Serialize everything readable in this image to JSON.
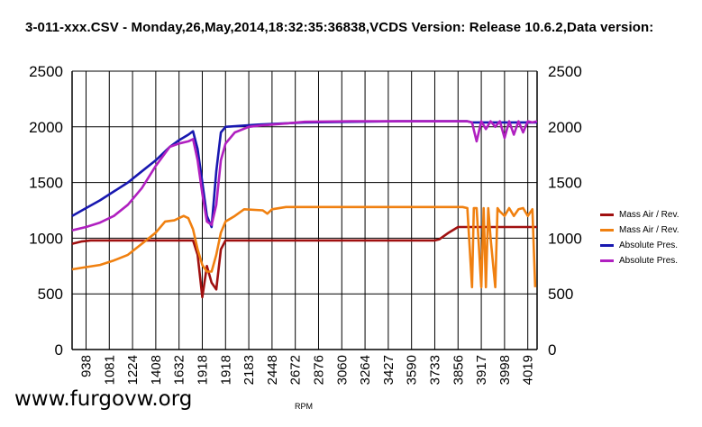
{
  "chart_data": {
    "type": "line",
    "title": "3-011-xxx.CSV - Monday,26,May,2014,18:32:35:36838,VCDS Version: Release 10.6.2,Data version:",
    "xlabel": "RPM",
    "ylabel": "",
    "ylim": [
      0,
      2500
    ],
    "y_ticks": [
      "0",
      "500",
      "1000",
      "1500",
      "2000",
      "2500"
    ],
    "x_tick_labels": [
      "938",
      "1081",
      "1224",
      "1408",
      "1632",
      "1918",
      "1918",
      "2183",
      "2448",
      "2672",
      "2876",
      "3060",
      "3264",
      "3427",
      "3590",
      "3733",
      "3856",
      "3917",
      "3998",
      "4019"
    ],
    "grid": true,
    "legend_position": "right",
    "x_index_max": 100,
    "series": [
      {
        "name": "Mass Air / Rev.",
        "color": "#a01010",
        "points": [
          [
            0,
            950
          ],
          [
            2,
            970
          ],
          [
            4,
            980
          ],
          [
            10,
            980
          ],
          [
            20,
            980
          ],
          [
            26,
            980
          ],
          [
            27,
            850
          ],
          [
            28,
            470
          ],
          [
            29,
            750
          ],
          [
            30,
            600
          ],
          [
            31,
            540
          ],
          [
            32,
            900
          ],
          [
            33,
            980
          ],
          [
            40,
            980
          ],
          [
            60,
            980
          ],
          [
            78,
            980
          ],
          [
            79,
            990
          ],
          [
            81,
            1050
          ],
          [
            83,
            1100
          ],
          [
            100,
            1100
          ]
        ]
      },
      {
        "name": "Mass Air / Rev.",
        "color": "#f08010",
        "points": [
          [
            0,
            720
          ],
          [
            3,
            740
          ],
          [
            6,
            760
          ],
          [
            9,
            800
          ],
          [
            12,
            850
          ],
          [
            15,
            950
          ],
          [
            18,
            1050
          ],
          [
            20,
            1150
          ],
          [
            22,
            1160
          ],
          [
            24,
            1200
          ],
          [
            25,
            1180
          ],
          [
            26,
            1080
          ],
          [
            27,
            900
          ],
          [
            28,
            760
          ],
          [
            29,
            700
          ],
          [
            30,
            700
          ],
          [
            31,
            850
          ],
          [
            32,
            1050
          ],
          [
            33,
            1150
          ],
          [
            35,
            1200
          ],
          [
            37,
            1260
          ],
          [
            41,
            1250
          ],
          [
            42,
            1220
          ],
          [
            43,
            1260
          ],
          [
            46,
            1280
          ],
          [
            60,
            1280
          ],
          [
            84,
            1280
          ],
          [
            85,
            1270
          ],
          [
            86,
            560
          ],
          [
            86.4,
            1270
          ],
          [
            87,
            1270
          ],
          [
            88,
            560
          ],
          [
            88.5,
            1270
          ],
          [
            89,
            560
          ],
          [
            89.5,
            1270
          ],
          [
            90,
            1000
          ],
          [
            91,
            560
          ],
          [
            91.5,
            1270
          ],
          [
            92,
            1240
          ],
          [
            93,
            1200
          ],
          [
            94,
            1270
          ],
          [
            95,
            1200
          ],
          [
            96,
            1260
          ],
          [
            97,
            1270
          ],
          [
            98,
            1200
          ],
          [
            99,
            1260
          ],
          [
            99.6,
            560
          ]
        ]
      },
      {
        "name": "Absolute Pres.",
        "color": "#1818b0",
        "points": [
          [
            0,
            1200
          ],
          [
            3,
            1270
          ],
          [
            6,
            1340
          ],
          [
            9,
            1420
          ],
          [
            12,
            1500
          ],
          [
            15,
            1600
          ],
          [
            18,
            1700
          ],
          [
            21,
            1820
          ],
          [
            23,
            1880
          ],
          [
            25,
            1930
          ],
          [
            26,
            1960
          ],
          [
            27,
            1800
          ],
          [
            28,
            1500
          ],
          [
            29,
            1200
          ],
          [
            30,
            1100
          ],
          [
            31,
            1600
          ],
          [
            32,
            1950
          ],
          [
            33,
            2000
          ],
          [
            40,
            2020
          ],
          [
            50,
            2040
          ],
          [
            70,
            2050
          ],
          [
            85,
            2050
          ],
          [
            86,
            2040
          ],
          [
            100,
            2040
          ]
        ]
      },
      {
        "name": "Absolute Pres.",
        "color": "#b020c0",
        "points": [
          [
            0,
            1070
          ],
          [
            3,
            1100
          ],
          [
            6,
            1140
          ],
          [
            9,
            1200
          ],
          [
            12,
            1300
          ],
          [
            15,
            1450
          ],
          [
            18,
            1650
          ],
          [
            21,
            1820
          ],
          [
            23,
            1850
          ],
          [
            25,
            1870
          ],
          [
            26,
            1890
          ],
          [
            27,
            1700
          ],
          [
            28,
            1400
          ],
          [
            29,
            1150
          ],
          [
            30,
            1120
          ],
          [
            31,
            1300
          ],
          [
            32,
            1700
          ],
          [
            33,
            1850
          ],
          [
            35,
            1950
          ],
          [
            38,
            2000
          ],
          [
            40,
            2010
          ],
          [
            43,
            2020
          ],
          [
            46,
            2030
          ],
          [
            50,
            2045
          ],
          [
            60,
            2050
          ],
          [
            85,
            2050
          ],
          [
            86,
            2040
          ],
          [
            87,
            1870
          ],
          [
            88,
            2050
          ],
          [
            89,
            1980
          ],
          [
            90,
            2050
          ],
          [
            91,
            2000
          ],
          [
            92,
            2050
          ],
          [
            93,
            1900
          ],
          [
            94,
            2050
          ],
          [
            95,
            1930
          ],
          [
            96,
            2050
          ],
          [
            97,
            1950
          ],
          [
            98,
            2050
          ],
          [
            99,
            2040
          ],
          [
            100,
            2050
          ]
        ]
      }
    ]
  },
  "watermark": "www.furgovw.org"
}
